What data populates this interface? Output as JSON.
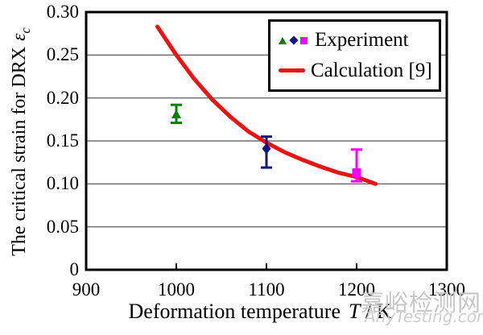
{
  "axes": {
    "y_title_text": "The critical strain for DRX",
    "y_title_symbol": "ε",
    "y_title_sub": "c",
    "x_title_text": "Deformation temperature",
    "x_title_symbol": "T",
    "x_title_unit": " / K"
  },
  "legend": {
    "experiment": "Experiment",
    "calculation": "Calculation [9]"
  },
  "watermark": {
    "line1": "嘉峪检测网",
    "line2": "AnyTesting.com"
  },
  "chart_data": {
    "type": "line",
    "title": "",
    "xlabel": "Deformation temperature T / K",
    "ylabel": "The critical strain for DRX εc",
    "xlim": [
      900,
      1300
    ],
    "ylim": [
      0,
      0.3
    ],
    "x_ticks": [
      900,
      1000,
      1100,
      1200,
      1300
    ],
    "y_ticks": [
      0,
      0.05,
      0.1,
      0.15,
      0.2,
      0.25,
      0.3
    ],
    "y_tick_labels": [
      "0",
      "0.05",
      "0.10",
      "0.15",
      "0.20",
      "0.25",
      "0.30"
    ],
    "grid": "horizontal gridlines at each y tick",
    "grid_color": "#6f6f6f",
    "frame_color": "#000000",
    "legend_position": "top-right inside plot",
    "series": [
      {
        "name": "Experiment",
        "type": "scatter-errorbar",
        "points": [
          {
            "x": 1000,
            "y": 0.181,
            "y_low": 0.171,
            "y_high": 0.192,
            "marker": "triangle",
            "color": "#008000"
          },
          {
            "x": 1100,
            "y": 0.141,
            "y_low": 0.119,
            "y_high": 0.155,
            "marker": "diamond",
            "color": "#14147d"
          },
          {
            "x": 1200,
            "y": 0.113,
            "y_low": 0.103,
            "y_high": 0.14,
            "marker": "square",
            "color": "#ff00ff"
          }
        ]
      },
      {
        "name": "Calculation [9]",
        "type": "line",
        "color": "#ee1111",
        "stroke_width": 5,
        "x": [
          979,
          1000,
          1020,
          1040,
          1060,
          1080,
          1100,
          1120,
          1140,
          1160,
          1180,
          1200,
          1221
        ],
        "y": [
          0.283,
          0.25,
          0.222,
          0.198,
          0.178,
          0.161,
          0.148,
          0.137,
          0.128,
          0.12,
          0.113,
          0.108,
          0.1
        ]
      }
    ]
  }
}
